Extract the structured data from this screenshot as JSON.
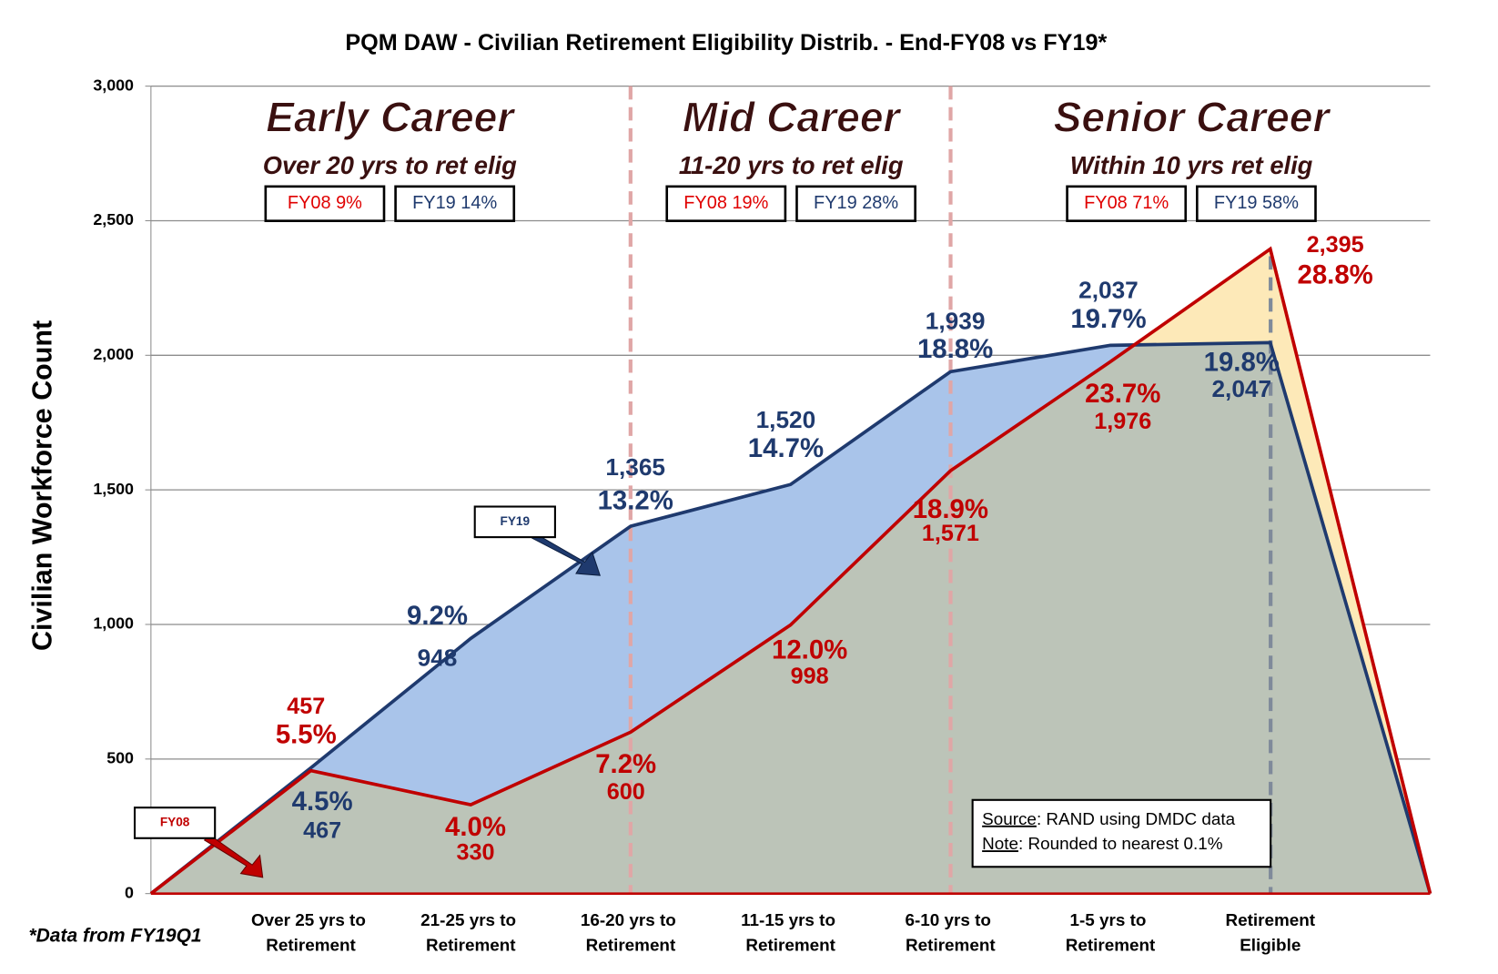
{
  "chart_data": {
    "type": "area",
    "title": "PQM DAW - Civilian Retirement Eligibility Distrib. - End-FY08 vs FY19*",
    "y_label": "Civilian Workforce Count",
    "footnote": "*Data from FY19Q1",
    "categories": [
      null,
      "Over 25 yrs to Retirement",
      "21-25 yrs to Retirement",
      "16-20 yrs to Retirement",
      "11-15 yrs to Retirement",
      "6-10 yrs to Retirement",
      "1-5 yrs to Retirement",
      "Retirement Eligible",
      null
    ],
    "series": [
      {
        "name": "FY19",
        "color": "#1f3a6e",
        "fill": "#a9c4ea",
        "values": [
          0,
          467,
          948,
          1365,
          1520,
          1939,
          2037,
          2047,
          0
        ],
        "value_labels": [
          null,
          "467",
          "948",
          "1,365",
          "1,520",
          "1,939",
          "2,037",
          "2,047",
          null
        ],
        "share_labels": [
          null,
          "4.5%",
          "9.2%",
          "13.2%",
          "14.7%",
          "18.8%",
          "19.7%",
          "19.8%",
          null
        ]
      },
      {
        "name": "FY08",
        "color": "#c00000",
        "fill": "#fde9b8",
        "values": [
          0,
          457,
          330,
          600,
          998,
          1571,
          1976,
          2395,
          0
        ],
        "value_labels": [
          null,
          "457",
          "330",
          "600",
          "998",
          "1,571",
          "1,976",
          "2,395",
          null
        ],
        "share_labels": [
          null,
          "5.5%",
          "4.0%",
          "7.2%",
          "12.0%",
          "18.9%",
          "23.7%",
          "28.8%",
          null
        ]
      }
    ],
    "overlap_fill": "#bcc4b8",
    "ylim": [
      0,
      3000
    ],
    "yticks": [
      0,
      500,
      {
        "value": 1000,
        "label": "1,000"
      },
      {
        "value": 1500,
        "label": "1,500"
      },
      {
        "value": 2000,
        "label": "2,000"
      },
      {
        "value": 2500,
        "label": "2,500"
      },
      {
        "value": 3000,
        "label": "3,000"
      }
    ],
    "grid": true,
    "sections": [
      {
        "title": "Early Career",
        "subtitle": "Over 20 yrs to ret elig",
        "fy08": "FY08 9%",
        "fy19": "FY19 14%"
      },
      {
        "title": "Mid Career",
        "subtitle": "11-20 yrs to ret elig",
        "fy08": "FY08 19%",
        "fy19": "FY19 28%"
      },
      {
        "title": "Senior Career",
        "subtitle": "Within 10 yrs ret elig",
        "fy08": "FY08 71%",
        "fy19": "FY19 58%"
      }
    ],
    "arrow_labels": [
      "FY19",
      "FY08"
    ],
    "notes": [
      {
        "key": "Source",
        "text": ":  RAND using DMDC data"
      },
      {
        "key": "Note",
        "text": ":  Rounded to nearest 0.1%"
      }
    ]
  }
}
